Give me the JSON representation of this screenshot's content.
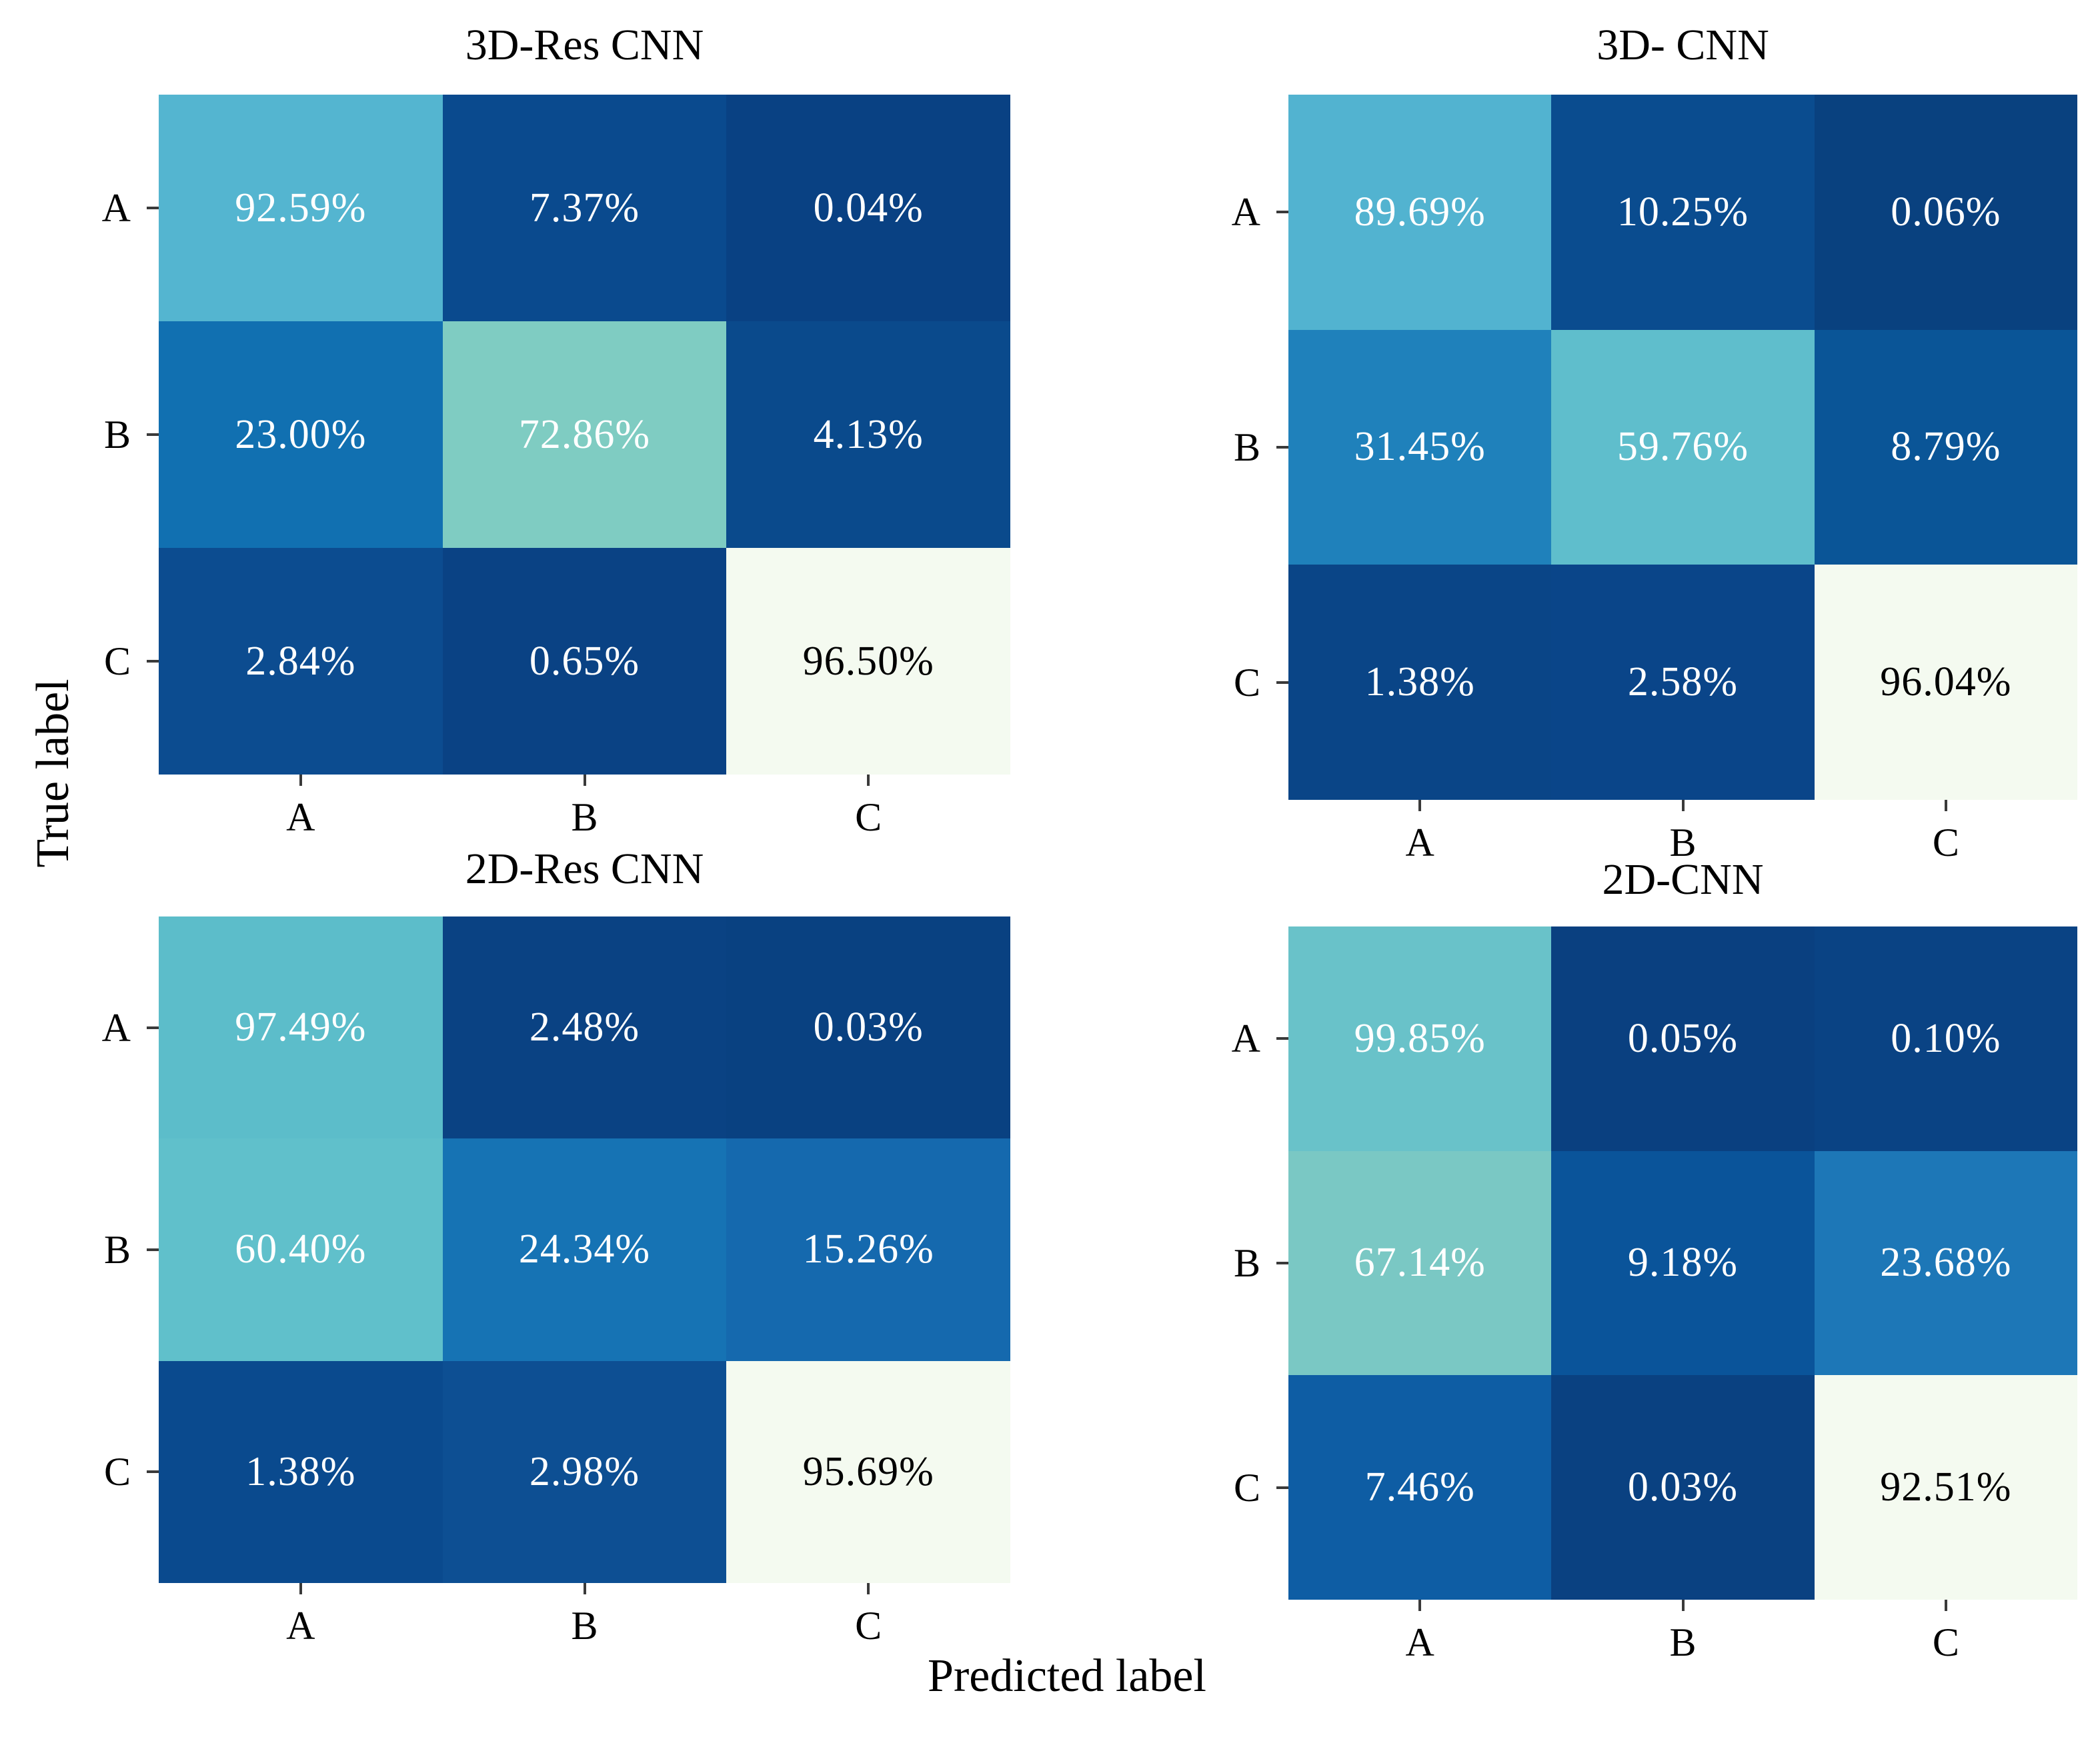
{
  "figure": {
    "xlabel": "Predicted label",
    "ylabel": "True label"
  },
  "chart_data": [
    {
      "type": "heatmap",
      "title": "3D-Res CNN",
      "position": "top-left",
      "x_categories": [
        "A",
        "B",
        "C"
      ],
      "y_categories": [
        "A",
        "B",
        "C"
      ],
      "values_percent": [
        [
          92.59,
          7.37,
          0.04
        ],
        [
          23.0,
          72.86,
          4.13
        ],
        [
          2.84,
          0.65,
          96.5
        ]
      ],
      "cell_labels": [
        [
          "92.59%",
          "7.37%",
          "0.04%"
        ],
        [
          "23.00%",
          "72.86%",
          "4.13%"
        ],
        [
          "2.84%",
          "0.65%",
          "96.50%"
        ]
      ],
      "cell_colors": [
        [
          "#54b5d0",
          "#0a4a8e",
          "#094183"
        ],
        [
          "#1170b1",
          "#7fccc2",
          "#0a4a8c"
        ],
        [
          "#0c4c90",
          "#0a4284",
          "#f4faf0"
        ]
      ]
    },
    {
      "type": "heatmap",
      "title": "3D- CNN",
      "position": "top-right",
      "x_categories": [
        "A",
        "B",
        "C"
      ],
      "y_categories": [
        "A",
        "B",
        "C"
      ],
      "values_percent": [
        [
          89.69,
          10.25,
          0.06
        ],
        [
          31.45,
          59.76,
          8.79
        ],
        [
          1.38,
          2.58,
          96.04
        ]
      ],
      "cell_labels": [
        [
          "89.69%",
          "10.25%",
          "0.06%"
        ],
        [
          "31.45%",
          "59.76%",
          "8.79%"
        ],
        [
          "1.38%",
          "2.58%",
          "96.04%"
        ]
      ],
      "cell_colors": [
        [
          "#52b3d0",
          "#0a4c8f",
          "#09417f"
        ],
        [
          "#1f81bb",
          "#5fbecc",
          "#0a5597"
        ],
        [
          "#0a4587",
          "#0a4589",
          "#f4faf0"
        ]
      ]
    },
    {
      "type": "heatmap",
      "title": "2D-Res CNN",
      "position": "bottom-left",
      "x_categories": [
        "A",
        "B",
        "C"
      ],
      "y_categories": [
        "A",
        "B",
        "C"
      ],
      "values_percent": [
        [
          97.49,
          2.48,
          0.03
        ],
        [
          60.4,
          24.34,
          15.26
        ],
        [
          1.38,
          2.98,
          95.69
        ]
      ],
      "cell_labels": [
        [
          "97.49%",
          "2.48%",
          "0.03%"
        ],
        [
          "60.40%",
          "24.34%",
          "15.26%"
        ],
        [
          "1.38%",
          "2.98%",
          "95.69%"
        ]
      ],
      "cell_colors": [
        [
          "#5cbdca",
          "#0a4283",
          "#094181"
        ],
        [
          "#60c0cb",
          "#1673b4",
          "#1569ae"
        ],
        [
          "#0a4a8e",
          "#0d4f93",
          "#f4faf0"
        ]
      ]
    },
    {
      "type": "heatmap",
      "title": "2D-CNN",
      "position": "bottom-right",
      "x_categories": [
        "A",
        "B",
        "C"
      ],
      "y_categories": [
        "A",
        "B",
        "C"
      ],
      "values_percent": [
        [
          99.85,
          0.05,
          0.1
        ],
        [
          67.14,
          9.18,
          23.68
        ],
        [
          7.46,
          0.03,
          92.51
        ]
      ],
      "cell_labels": [
        [
          "99.85%",
          "0.05%",
          "0.10%"
        ],
        [
          "67.14%",
          "9.18%",
          "23.68%"
        ],
        [
          "7.46%",
          "0.03%",
          "92.51%"
        ]
      ],
      "cell_colors": [
        [
          "#69c2c9",
          "#0a4080",
          "#0a4384"
        ],
        [
          "#7ac8c4",
          "#0a549a",
          "#1d77b7"
        ],
        [
          "#0e5da4",
          "#0a4181",
          "#f4faf0"
        ]
      ]
    }
  ]
}
